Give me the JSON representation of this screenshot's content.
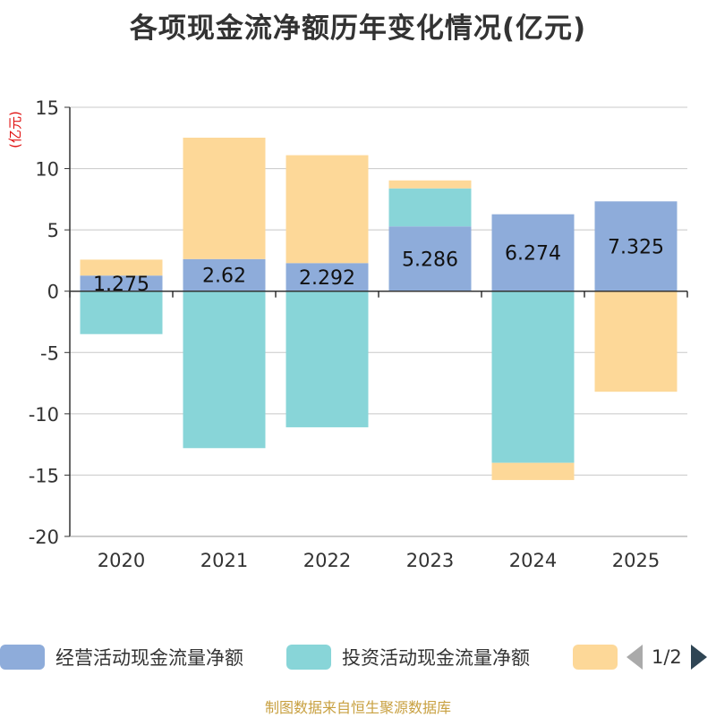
{
  "chart_data": {
    "type": "bar",
    "stacked": true,
    "title": "各项现金流净额历年变化情况(亿元)",
    "ylabel": "(亿元)",
    "xlabel": "",
    "categories": [
      "2020",
      "2021",
      "2022",
      "2023",
      "2024",
      "2025"
    ],
    "ylim": [
      -20,
      15
    ],
    "yticks": [
      15,
      10,
      5,
      0,
      -5,
      -10,
      -15,
      -20
    ],
    "series": [
      {
        "name": "经营活动现金流量净额",
        "color": "#8eacda",
        "values": [
          1.275,
          2.62,
          2.292,
          5.286,
          6.274,
          7.325
        ]
      },
      {
        "name": "投资活动现金流量净额",
        "color": "#88d5d8",
        "values": [
          -3.5,
          -12.8,
          -11.1,
          3.1,
          -14.0,
          0
        ]
      },
      {
        "name": "",
        "color": "#fdd898",
        "values": [
          1.3,
          9.9,
          8.8,
          0.65,
          -1.4,
          -8.2
        ]
      }
    ],
    "data_labels": [
      "1.275",
      "2.62",
      "2.292",
      "5.286",
      "6.274",
      "7.325"
    ],
    "legend_position": "bottom",
    "grid": true
  },
  "legend": {
    "page_text": "1/2"
  },
  "source": "制图数据来自恒生聚源数据库"
}
